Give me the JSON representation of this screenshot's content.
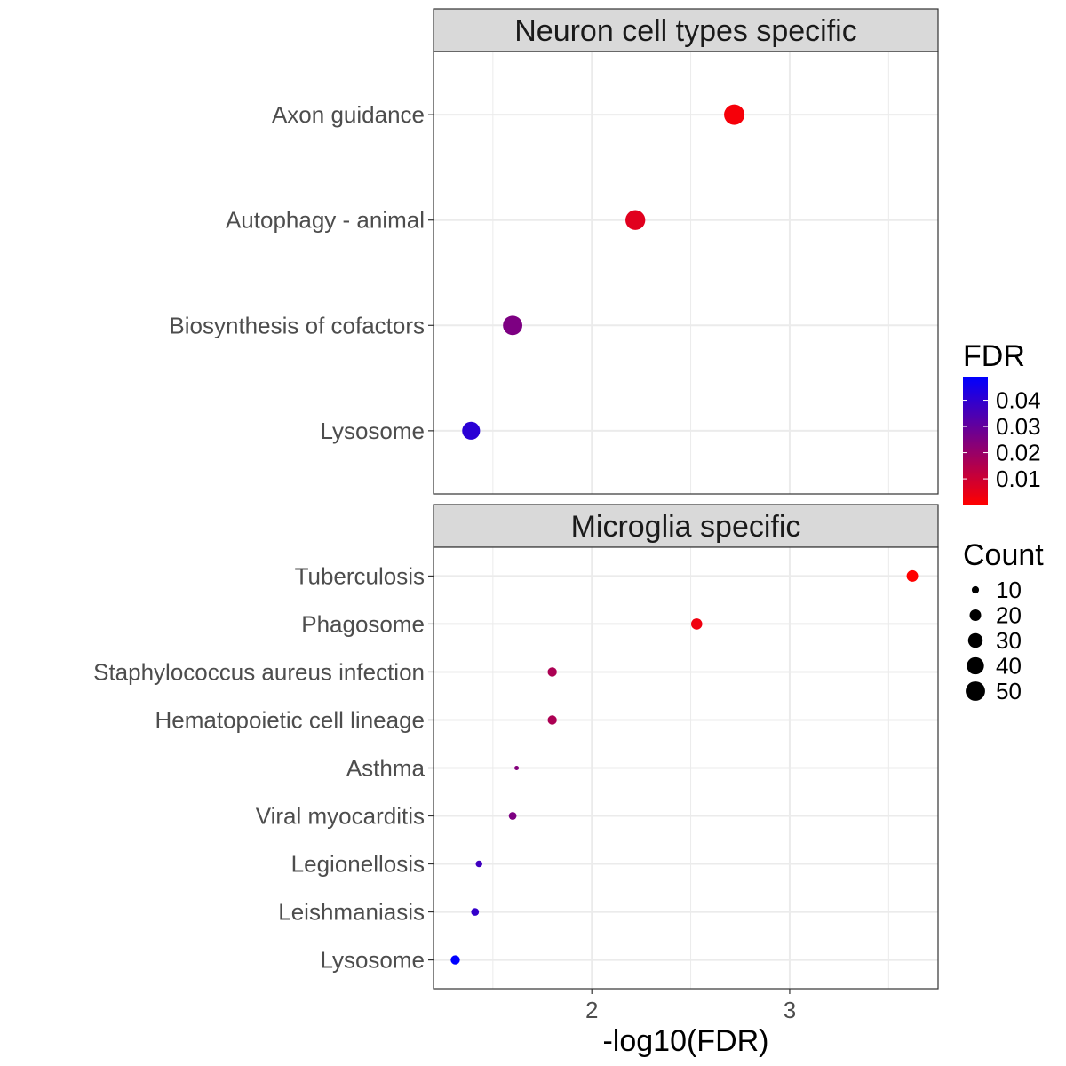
{
  "chart_data": {
    "type": "scatter",
    "xlabel": "-log10(FDR)",
    "xlim": [
      1.2,
      3.75
    ],
    "x_ticks": [
      2,
      3
    ],
    "x_tick_labels": [
      "2",
      "3"
    ],
    "grid": true,
    "panels": [
      {
        "title": "Neuron cell types specific",
        "categories": [
          "Axon guidance",
          "Autophagy - animal",
          "Biosynthesis of cofactors",
          "Lysosome"
        ],
        "points": [
          {
            "term": "Axon guidance",
            "x": 2.72,
            "fdr": 0.0019,
            "count": 55
          },
          {
            "term": "Autophagy - animal",
            "x": 2.22,
            "fdr": 0.006,
            "count": 52
          },
          {
            "term": "Biosynthesis of cofactors",
            "x": 1.6,
            "fdr": 0.025,
            "count": 50
          },
          {
            "term": "Lysosome",
            "x": 1.39,
            "fdr": 0.041,
            "count": 43
          }
        ]
      },
      {
        "title": "Microglia specific",
        "categories": [
          "Tuberculosis",
          "Phagosome",
          "Staphylococcus aureus infection",
          "Hematopoietic cell lineage",
          "Asthma",
          "Viral myocarditis",
          "Legionellosis",
          "Leishmaniasis",
          "Lysosome"
        ],
        "points": [
          {
            "term": "Tuberculosis",
            "x": 3.62,
            "fdr": 0.0002,
            "count": 20
          },
          {
            "term": "Phagosome",
            "x": 2.53,
            "fdr": 0.003,
            "count": 19
          },
          {
            "term": "Staphylococcus aureus infection",
            "x": 1.8,
            "fdr": 0.016,
            "count": 14
          },
          {
            "term": "Hematopoietic cell lineage",
            "x": 1.8,
            "fdr": 0.016,
            "count": 14
          },
          {
            "term": "Asthma",
            "x": 1.62,
            "fdr": 0.024,
            "count": 6
          },
          {
            "term": "Viral myocarditis",
            "x": 1.6,
            "fdr": 0.025,
            "count": 11
          },
          {
            "term": "Legionellosis",
            "x": 1.43,
            "fdr": 0.037,
            "count": 9
          },
          {
            "term": "Leishmaniasis",
            "x": 1.41,
            "fdr": 0.039,
            "count": 11
          },
          {
            "term": "Lysosome",
            "x": 1.31,
            "fdr": 0.049,
            "count": 14
          }
        ]
      }
    ],
    "legend": {
      "color": {
        "title": "FDR",
        "breaks": [
          0.04,
          0.03,
          0.02,
          0.01
        ],
        "labels": [
          "0.04",
          "0.03",
          "0.02",
          "0.01"
        ],
        "range": [
          0.0002,
          0.049
        ],
        "low_color": "#FF0000",
        "high_color": "#0000FF"
      },
      "size": {
        "title": "Count",
        "breaks": [
          10,
          20,
          30,
          40,
          50
        ],
        "labels": [
          "10",
          "20",
          "30",
          "40",
          "50"
        ],
        "range": [
          6,
          55
        ]
      },
      "placement": "right"
    },
    "colors": {
      "panel_border": "#333333",
      "strip_fill": "#D9D9D9",
      "grid": "#EBEBEB"
    }
  }
}
